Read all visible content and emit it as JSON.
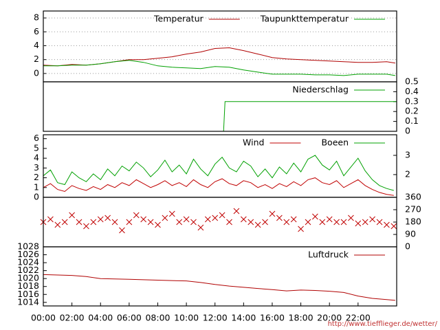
{
  "chart_data": [
    {
      "type": "line",
      "xlim": [
        0,
        24.7
      ],
      "ylim": [
        -1.2,
        9
      ],
      "yticks": [
        0,
        2,
        4,
        6,
        8
      ],
      "grid": true,
      "x": [
        0,
        1,
        2,
        3,
        4,
        5,
        6,
        7,
        8,
        9,
        10,
        11,
        12,
        13,
        14,
        15,
        16,
        17,
        18,
        19,
        20,
        21,
        22,
        23,
        24,
        24.6
      ],
      "series": [
        {
          "name": "Temperatur",
          "color": "#b00000",
          "values": [
            1.2,
            1.1,
            1.3,
            1.2,
            1.4,
            1.7,
            2.0,
            2.0,
            2.2,
            2.4,
            2.8,
            3.1,
            3.6,
            3.7,
            3.3,
            2.8,
            2.3,
            2.1,
            2.0,
            1.9,
            1.8,
            1.7,
            1.6,
            1.6,
            1.7,
            1.5
          ]
        },
        {
          "name": "Taupunkttemperatur",
          "color": "#00a000",
          "values": [
            1.1,
            1.1,
            1.2,
            1.2,
            1.4,
            1.7,
            1.9,
            1.6,
            1.1,
            0.9,
            0.8,
            0.7,
            1.0,
            0.9,
            0.5,
            0.2,
            -0.1,
            -0.1,
            -0.1,
            -0.2,
            -0.2,
            -0.3,
            -0.1,
            -0.1,
            -0.1,
            -0.3
          ]
        }
      ]
    },
    {
      "type": "line",
      "xlim": [
        0,
        24.7
      ],
      "y2lim": [
        0,
        0.5
      ],
      "y2ticks": [
        0,
        0.1,
        0.2,
        0.3,
        0.4,
        0.5
      ],
      "x": [
        0,
        12.6,
        12.7,
        24.7
      ],
      "series": [
        {
          "name": "Niederschlag",
          "color": "#00a000",
          "axis": "y2",
          "values": [
            0,
            0,
            0.3,
            0.3
          ]
        }
      ]
    },
    {
      "type": "line",
      "xlim": [
        0,
        24.7
      ],
      "ylim": [
        0,
        6.4
      ],
      "yticks": [
        0,
        1,
        2,
        3,
        4,
        5,
        6
      ],
      "y2lim": [
        0.82,
        4.07
      ],
      "y2ticks": [
        2,
        3
      ],
      "x": [
        0,
        0.5,
        1,
        1.5,
        2,
        2.5,
        3,
        3.5,
        4,
        4.5,
        5,
        5.5,
        6,
        6.5,
        7,
        7.5,
        8,
        8.5,
        9,
        9.5,
        10,
        10.5,
        11,
        11.5,
        12,
        12.5,
        13,
        13.5,
        14,
        14.5,
        15,
        15.5,
        16,
        16.5,
        17,
        17.5,
        18,
        18.5,
        19,
        19.5,
        20,
        20.5,
        21,
        21.5,
        22,
        22.5,
        23,
        23.5,
        24,
        24.5
      ],
      "series": [
        {
          "name": "Wind",
          "color": "#c00000",
          "values": [
            1.0,
            1.4,
            0.8,
            0.6,
            1.2,
            0.9,
            0.7,
            1.1,
            0.8,
            1.3,
            1.0,
            1.5,
            1.2,
            1.8,
            1.4,
            1.0,
            1.3,
            1.7,
            1.2,
            1.5,
            1.1,
            1.8,
            1.3,
            1.0,
            1.6,
            1.9,
            1.4,
            1.2,
            1.7,
            1.5,
            1.0,
            1.3,
            0.9,
            1.4,
            1.1,
            1.6,
            1.2,
            1.8,
            2.0,
            1.5,
            1.3,
            1.7,
            1.0,
            1.4,
            1.8,
            1.2,
            0.8,
            0.5,
            0.3,
            0.2
          ]
        },
        {
          "name": "Boeen",
          "color": "#00a000",
          "values": [
            2.2,
            2.8,
            1.5,
            1.3,
            2.6,
            2.0,
            1.6,
            2.4,
            1.8,
            2.9,
            2.2,
            3.2,
            2.7,
            3.6,
            3.0,
            2.1,
            2.8,
            3.8,
            2.6,
            3.3,
            2.4,
            3.9,
            2.9,
            2.2,
            3.4,
            4.1,
            3.0,
            2.6,
            3.7,
            3.2,
            2.1,
            2.9,
            2.0,
            3.1,
            2.4,
            3.5,
            2.6,
            3.9,
            4.3,
            3.3,
            2.8,
            3.7,
            2.2,
            3.1,
            4.0,
            2.7,
            1.8,
            1.2,
            0.9,
            0.7
          ]
        }
      ]
    },
    {
      "type": "scatter",
      "xlim": [
        0,
        24.7
      ],
      "y2lim": [
        0,
        360
      ],
      "y2ticks": [
        0,
        90,
        180,
        270,
        360
      ],
      "x": [
        0,
        0.5,
        1,
        1.5,
        2,
        2.5,
        3,
        3.5,
        4,
        4.5,
        5,
        5.5,
        6,
        6.5,
        7,
        7.5,
        8,
        8.5,
        9,
        9.5,
        10,
        10.5,
        11,
        11.5,
        12,
        12.5,
        13,
        13.5,
        14,
        14.5,
        15,
        15.5,
        16,
        16.5,
        17,
        17.5,
        18,
        18.5,
        19,
        19.5,
        20,
        20.5,
        21,
        21.5,
        22,
        22.5,
        23,
        23.5,
        24,
        24.5
      ],
      "series": [
        {
          "color": "#c00000",
          "axis": "y2",
          "values": [
            180,
            200,
            160,
            180,
            230,
            180,
            150,
            180,
            200,
            210,
            180,
            120,
            180,
            230,
            200,
            180,
            160,
            210,
            240,
            180,
            200,
            180,
            140,
            200,
            210,
            230,
            180,
            260,
            200,
            180,
            160,
            180,
            240,
            210,
            180,
            200,
            130,
            180,
            220,
            180,
            200,
            180,
            180,
            210,
            170,
            180,
            200,
            180,
            160,
            150
          ]
        }
      ]
    },
    {
      "type": "line",
      "xlim": [
        0,
        24.7
      ],
      "ylim": [
        1013.1,
        1028
      ],
      "yticks": [
        1014,
        1016,
        1018,
        1020,
        1022,
        1024,
        1026,
        1028
      ],
      "xticks": [
        {
          "value": 0,
          "label": "00:00"
        },
        {
          "value": 2,
          "label": "02:00"
        },
        {
          "value": 4,
          "label": "04:00"
        },
        {
          "value": 6,
          "label": "06:00"
        },
        {
          "value": 8,
          "label": "08:00"
        },
        {
          "value": 10,
          "label": "10:00"
        },
        {
          "value": 12,
          "label": "12:00"
        },
        {
          "value": 14,
          "label": "14:00"
        },
        {
          "value": 16,
          "label": "16:00"
        },
        {
          "value": 18,
          "label": "18:00"
        },
        {
          "value": 20,
          "label": "20:00"
        },
        {
          "value": 22,
          "label": "22:00"
        }
      ],
      "x": [
        0,
        1,
        2,
        3,
        4,
        5,
        6,
        7,
        8,
        9,
        10,
        11,
        12,
        13,
        14,
        15,
        16,
        17,
        18,
        19,
        20,
        21,
        22,
        23,
        24,
        24.6
      ],
      "series": [
        {
          "name": "Luftdruck",
          "color": "#b00000",
          "values": [
            1021.0,
            1020.9,
            1020.8,
            1020.5,
            1020.0,
            1019.9,
            1019.8,
            1019.7,
            1019.6,
            1019.5,
            1019.4,
            1019.0,
            1018.5,
            1018.1,
            1017.8,
            1017.5,
            1017.2,
            1016.9,
            1017.1,
            1017.0,
            1016.8,
            1016.5,
            1015.6,
            1015.0,
            1014.7,
            1014.5
          ]
        }
      ]
    }
  ],
  "footer": "http://www.tiefflieger.de/wetter/"
}
